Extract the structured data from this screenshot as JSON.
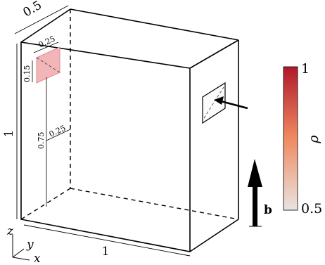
{
  "dimensions": {
    "depth": "0.5",
    "height": "1",
    "width": "1"
  },
  "load_patch": {
    "size_a": "0.25",
    "size_b": "0.15",
    "offset_vertical": "0.75",
    "offset_horizontal": "0.25",
    "color": "#f2b6b8"
  },
  "body_force": {
    "label": "b"
  },
  "axes": {
    "x": "x",
    "y": "y",
    "z": "z"
  },
  "colorbar": {
    "label": "ρ",
    "max_label": "1",
    "min_label": "0.5",
    "color_top": "#b2182b",
    "color_mid": "#ef8a62",
    "color_bottom": "#e8e4e0"
  }
}
